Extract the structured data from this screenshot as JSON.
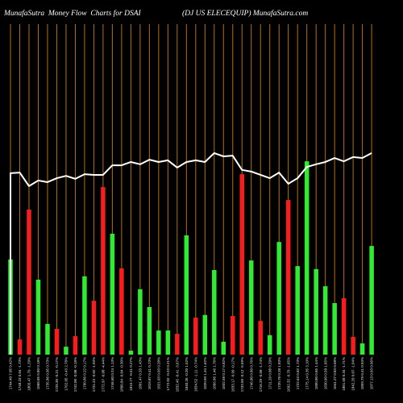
{
  "chart_data": {
    "type": "bar",
    "title": "MunafaSutra  Money Flow  Charts for DSAI",
    "subtitle": "(DJ US ELECEQUIP) MunafaSutra.com",
    "ylim": [
      0,
      1
    ],
    "grid": true,
    "categories": [
      "1744.40 7.05 0.42%",
      "1748.23 0.04 -1.73%",
      "1803.47 1.79 -1.29%",
      "1868.85 0.80 0.18%",
      "1735.86 0.95 0.73%",
      "1728.30 -0.21 -0.17%",
      "1762.05 -0.43 2.78%",
      "1742.00 -0.08 -0.18%",
      "1760.86 0.22 0.17%",
      "1731.23 -0.02 -1.93%",
      "1772.97 -0.08 -4.44%",
      "1746.60 0.24 1.13%",
      "1800.84 -0.04 -0.30%",
      "1815.77 -0.51 0.27%",
      "1801.47 0.33 1.43%",
      "1819.87 0.41 0.73%",
      "1821.03 0.03 0.28%",
      "1772.02 -0.23 0.21%",
      "1832.45 -0.41 -3.67%",
      "1840.26 -0.20 1.52%",
      "1834.52 -1.11 -0.74%",
      "1820.50 1.34 1.62%",
      "1866.86 1.46 1.76%",
      "1832.58 0.17 0.82%",
      "1833.17 -0.99 -0.17%",
      "1733.50 -0.12 -5.59%",
      "1746.80 0.80 0.76%",
      "1716.29 -0.58 -1.74%",
      "1711.29 0.08 0.29%",
      "1720.78 0.28 1.83%",
      "1692.32 -0.79 -1.65%",
      "1722.63 0.82 1.73%",
      "1775.14 0.35 3.10%",
      "1800.80 0.65 1.44%",
      "1830.60 0.58 1.65%",
      "1841.27 0.83 0.58%",
      "1861.58 0.34 -1.71%",
      "1842.29 0.07 -1.04%",
      "1859.79 0.41 0.94%",
      "1877.13 0.03 0.96%"
    ],
    "series": [
      {
        "type": "bar",
        "values": [
          0.288,
          0.046,
          0.439,
          0.227,
          0.093,
          0.078,
          0.024,
          0.056,
          0.237,
          0.163,
          0.507,
          0.366,
          0.261,
          0.012,
          0.198,
          0.144,
          0.073,
          0.073,
          0.063,
          0.361,
          0.112,
          0.12,
          0.256,
          0.039,
          0.117,
          0.546,
          0.285,
          0.102,
          0.059,
          0.341,
          0.468,
          0.268,
          0.585,
          0.259,
          0.207,
          0.156,
          0.171,
          0.054,
          0.034,
          0.329
        ],
        "colors": [
          "green",
          "red",
          "red",
          "green",
          "green",
          "red",
          "green",
          "red",
          "green",
          "red",
          "red",
          "green",
          "red",
          "green",
          "green",
          "green",
          "green",
          "green",
          "red",
          "green",
          "red",
          "green",
          "green",
          "green",
          "red",
          "red",
          "green",
          "red",
          "green",
          "green",
          "red",
          "green",
          "green",
          "green",
          "green",
          "green",
          "red",
          "red",
          "green",
          "green"
        ]
      },
      {
        "type": "line",
        "values": [
          0.549,
          0.551,
          0.51,
          0.527,
          0.522,
          0.534,
          0.541,
          0.532,
          0.546,
          0.544,
          0.544,
          0.573,
          0.573,
          0.583,
          0.576,
          0.59,
          0.583,
          0.588,
          0.566,
          0.583,
          0.588,
          0.583,
          0.61,
          0.6,
          0.602,
          0.559,
          0.554,
          0.544,
          0.534,
          0.551,
          0.517,
          0.534,
          0.568,
          0.576,
          0.583,
          0.595,
          0.585,
          0.598,
          0.595,
          0.61
        ]
      }
    ],
    "palette": {
      "green": "#30ec30",
      "red": "#f81c1c",
      "line": "#ffffff",
      "grid": "#b8700a",
      "background": "#000000"
    }
  }
}
